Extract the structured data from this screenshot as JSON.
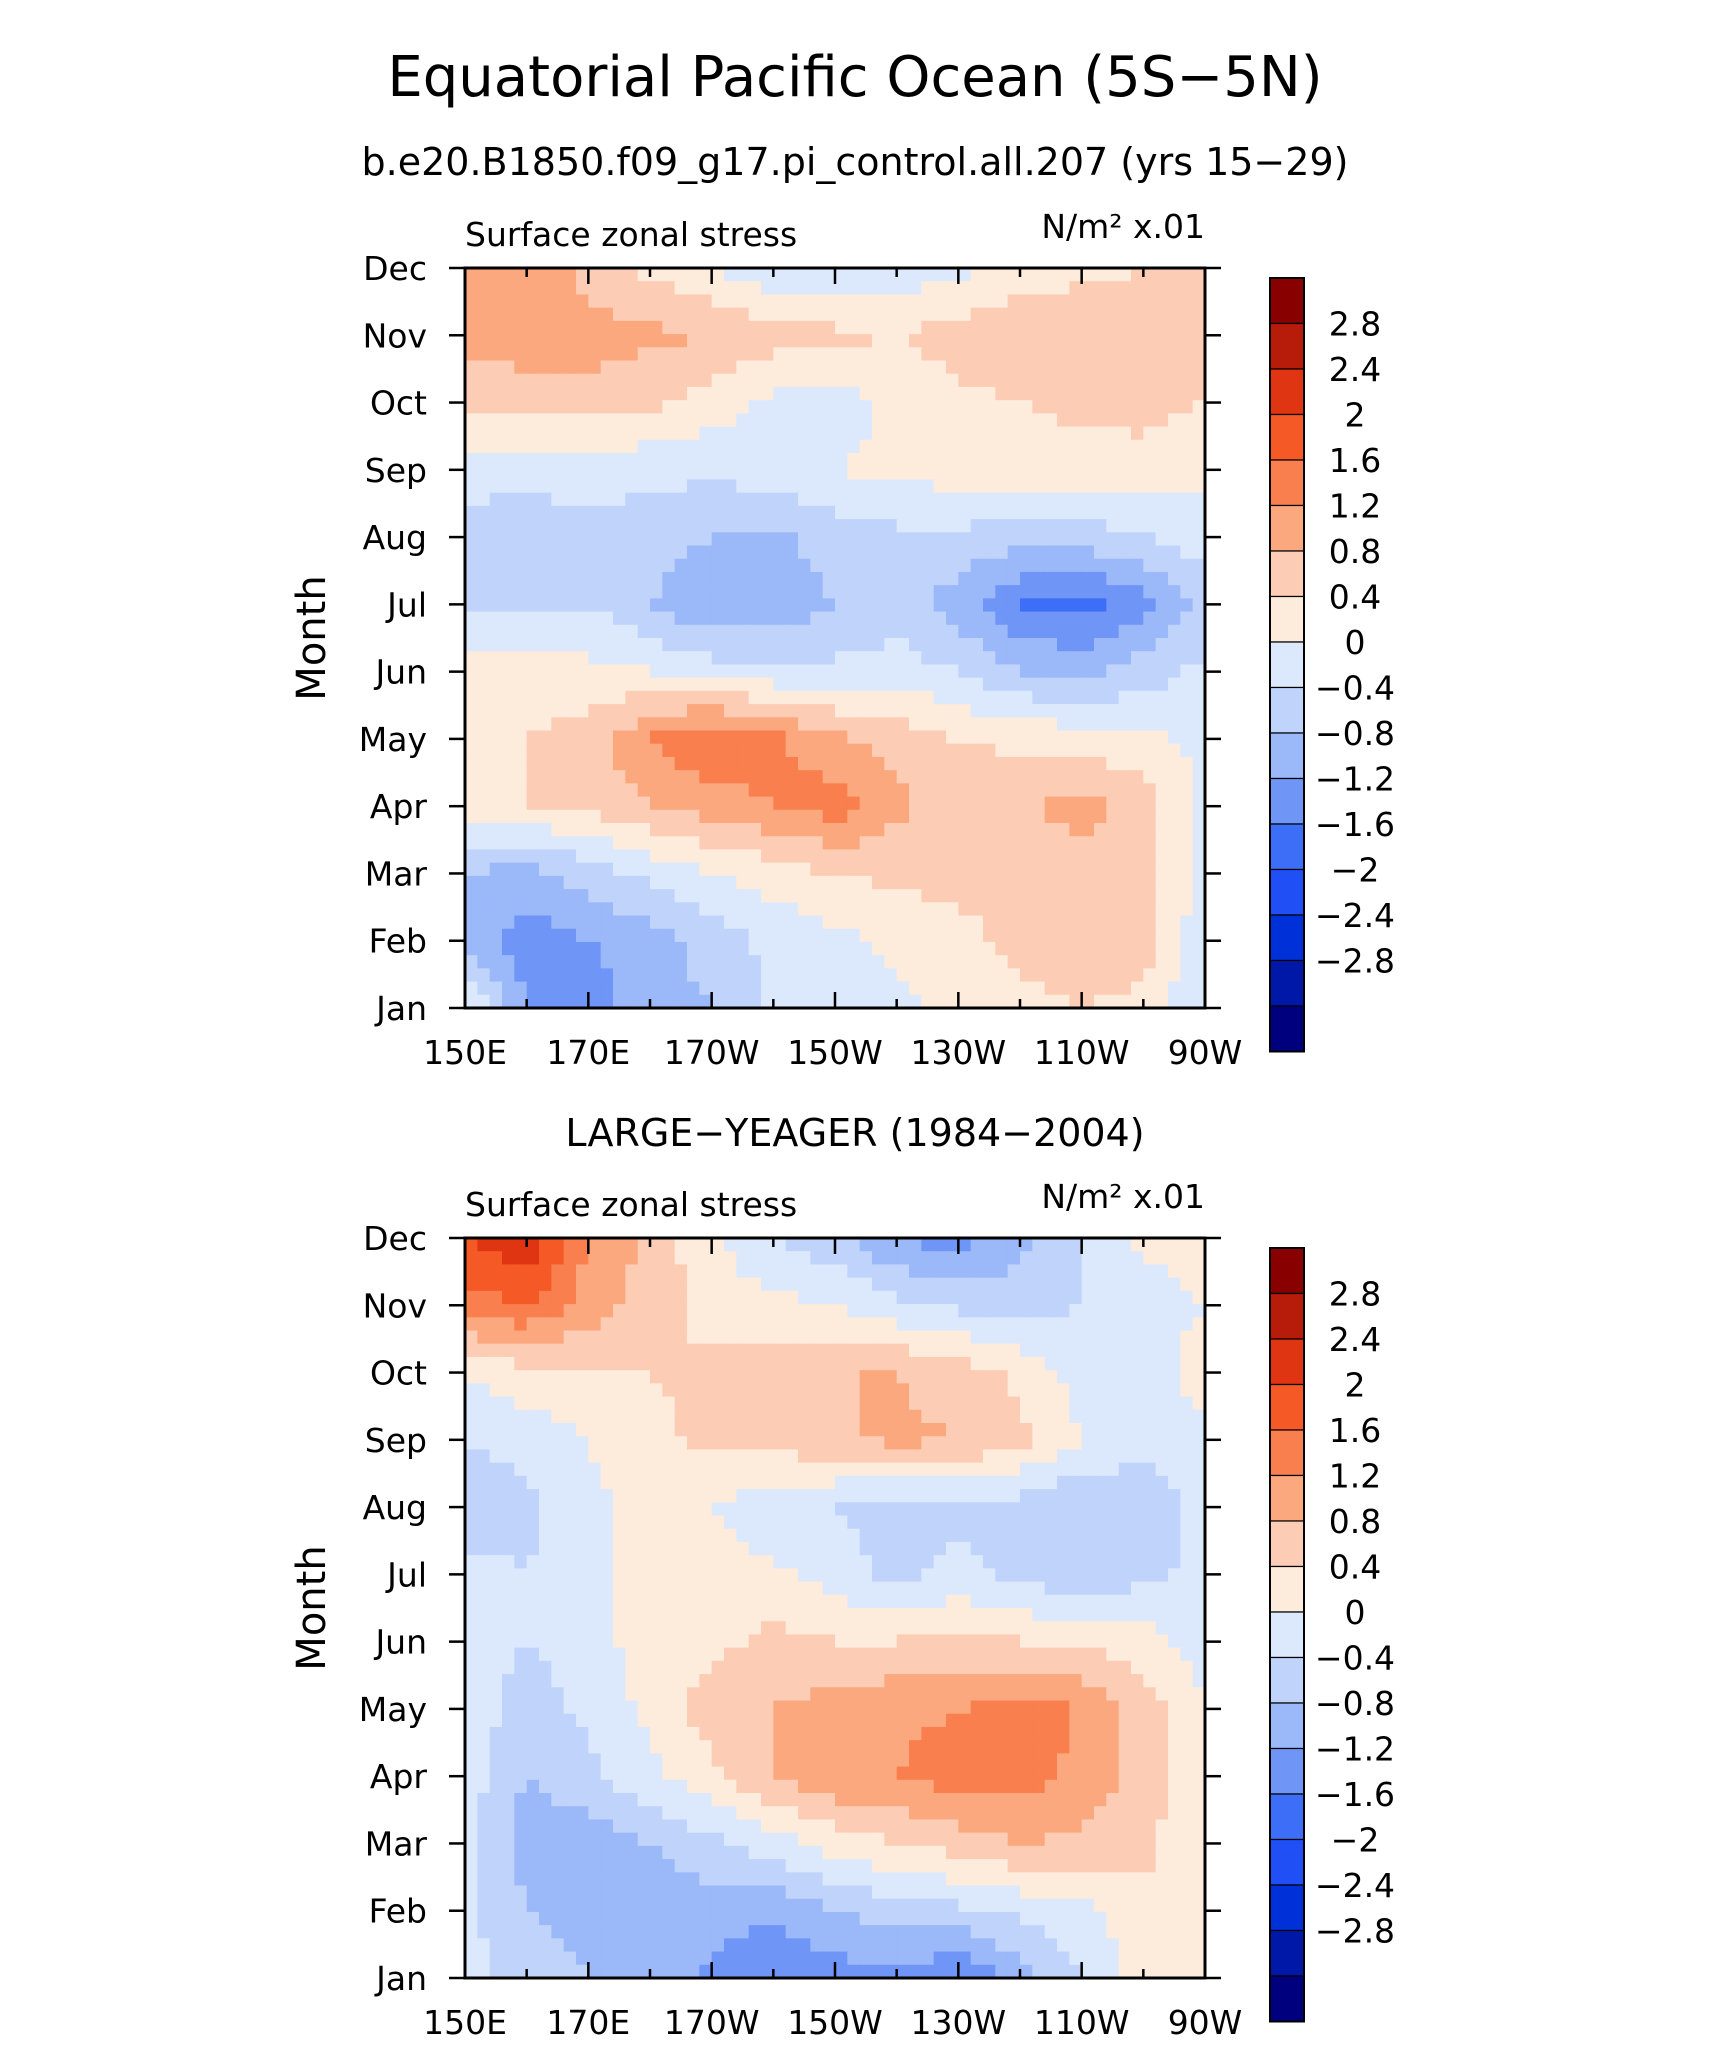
{
  "title": "Equatorial Pacific Ocean (5S−5N)",
  "colors": {
    "-3.2": "#00007f",
    "-2.8": "#0018a8",
    "-2.4": "#0030d8",
    "-2.0": "#1f4ff5",
    "-1.6": "#3d6ef7",
    "-1.2": "#6f95f7",
    "-0.8": "#9bb9f9",
    "-0.4": "#c0d4fb",
    "0.0": "#dce9fd",
    "0.4": "#fdebdc",
    "0.8": "#fccdb4",
    "1.2": "#fba87f",
    "1.6": "#f97f4e",
    "2.0": "#f55a26",
    "2.4": "#e03512",
    "2.8": "#b71c0a",
    "3.2": "#880000"
  },
  "chart_data": [
    {
      "type": "heatmap",
      "title": "b.e20.B1850.f09_g17.pi_control.all.207 (yrs 15−29)",
      "subtitle_left": "Surface zonal stress",
      "units": "N/m² x.01",
      "ylabel": "Month",
      "x_ticks": [
        "150E",
        "170E",
        "170W",
        "150W",
        "130W",
        "110W",
        "90W"
      ],
      "x_tick_lon": [
        150,
        170,
        190,
        210,
        230,
        250,
        270
      ],
      "y_ticks": [
        "Jan",
        "Feb",
        "Mar",
        "Apr",
        "May",
        "Jun",
        "Jul",
        "Aug",
        "Sep",
        "Oct",
        "Nov",
        "Dec"
      ],
      "colorbar_labels": [
        "2.8",
        "2.4",
        "2",
        "1.6",
        "1.2",
        "0.8",
        "0.4",
        "0",
        "−0.4",
        "−0.8",
        "−1.2",
        "−1.6",
        "−2",
        "−2.4",
        "−2.8"
      ],
      "levels": [
        -2.8,
        -2.4,
        -2.0,
        -1.6,
        -1.2,
        -0.8,
        -0.4,
        0.0,
        0.4,
        0.8,
        1.2,
        1.6,
        2.0,
        2.4,
        2.8
      ],
      "xlim": [
        150,
        270
      ],
      "ylim": [
        1,
        12
      ],
      "lon": [
        150,
        160,
        170,
        180,
        190,
        200,
        210,
        220,
        230,
        240,
        250,
        260,
        270
      ],
      "values": [
        [
          0.2,
          -1.2,
          -1.4,
          -1.0,
          -0.8,
          -0.3,
          -0.1,
          -0.1,
          0.1,
          0.3,
          0.4,
          0.3,
          -0.5
        ],
        [
          -1.0,
          -1.4,
          -1.2,
          -1.0,
          -0.6,
          -0.3,
          -0.1,
          0.1,
          0.3,
          0.5,
          0.6,
          0.6,
          -0.3
        ],
        [
          -0.8,
          -1.0,
          -0.6,
          -0.3,
          0.0,
          0.2,
          0.4,
          0.5,
          0.5,
          0.5,
          0.6,
          0.6,
          -0.2
        ],
        [
          0.3,
          0.4,
          0.5,
          0.8,
          1.0,
          1.2,
          1.4,
          0.9,
          0.6,
          0.7,
          1.0,
          0.6,
          -0.1
        ],
        [
          0.3,
          0.4,
          0.6,
          1.2,
          1.6,
          1.3,
          0.9,
          0.6,
          0.4,
          0.3,
          0.2,
          0.1,
          -0.1
        ],
        [
          0.2,
          0.2,
          0.1,
          0.0,
          -0.2,
          -0.3,
          -0.3,
          -0.2,
          -0.4,
          -0.8,
          -0.9,
          -0.6,
          -0.3
        ],
        [
          -0.4,
          -0.5,
          -0.4,
          -0.8,
          -1.2,
          -1.1,
          -0.8,
          -0.6,
          -1.0,
          -1.6,
          -1.8,
          -1.4,
          -0.6
        ],
        [
          -0.6,
          -0.6,
          -0.5,
          -0.6,
          -0.8,
          -0.9,
          -0.6,
          -0.5,
          -0.5,
          -0.6,
          -0.6,
          -0.4,
          -0.2
        ],
        [
          -0.2,
          -0.3,
          -0.2,
          -0.3,
          -0.3,
          -0.2,
          0.0,
          0.1,
          0.2,
          0.2,
          0.2,
          0.3,
          0.1
        ],
        [
          0.5,
          0.6,
          0.6,
          0.5,
          0.2,
          -0.1,
          -0.2,
          0.1,
          0.3,
          0.4,
          0.5,
          0.5,
          0.4
        ],
        [
          1.0,
          1.0,
          1.0,
          0.9,
          0.8,
          0.6,
          0.5,
          0.4,
          0.6,
          0.7,
          0.7,
          0.6,
          0.6
        ],
        [
          0.8,
          1.2,
          0.6,
          0.3,
          0.0,
          -0.3,
          -0.3,
          -0.3,
          -0.1,
          0.2,
          0.3,
          0.4,
          0.5
        ]
      ]
    },
    {
      "type": "heatmap",
      "title": "LARGE−YEAGER (1984−2004)",
      "subtitle_left": "Surface zonal stress",
      "units": "N/m² x.01",
      "ylabel": "Month",
      "x_ticks": [
        "150E",
        "170E",
        "170W",
        "150W",
        "130W",
        "110W",
        "90W"
      ],
      "x_tick_lon": [
        150,
        170,
        190,
        210,
        230,
        250,
        270
      ],
      "y_ticks": [
        "Jan",
        "Feb",
        "Mar",
        "Apr",
        "May",
        "Jun",
        "Jul",
        "Aug",
        "Sep",
        "Oct",
        "Nov",
        "Dec"
      ],
      "colorbar_labels": [
        "2.8",
        "2.4",
        "2",
        "1.6",
        "1.2",
        "0.8",
        "0.4",
        "0",
        "−0.4",
        "−0.8",
        "−1.2",
        "−1.6",
        "−2",
        "−2.4",
        "−2.8"
      ],
      "levels": [
        -2.8,
        -2.4,
        -2.0,
        -1.6,
        -1.2,
        -0.8,
        -0.4,
        0.0,
        0.4,
        0.8,
        1.2,
        1.6,
        2.0,
        2.4,
        2.8
      ],
      "xlim": [
        150,
        270
      ],
      "ylim": [
        1,
        12
      ],
      "lon": [
        150,
        160,
        170,
        180,
        190,
        200,
        210,
        220,
        230,
        240,
        250,
        260,
        270
      ],
      "values": [
        [
          -0.2,
          -0.6,
          -0.8,
          -0.9,
          -1.3,
          -1.6,
          -1.4,
          -1.3,
          -1.6,
          -1.0,
          -0.4,
          0.2,
          0.3
        ],
        [
          -0.3,
          -0.8,
          -1.0,
          -1.1,
          -1.0,
          -1.1,
          -0.8,
          -0.6,
          -0.5,
          -0.3,
          -0.1,
          0.3,
          0.3
        ],
        [
          -0.2,
          -1.0,
          -1.1,
          -0.8,
          -0.5,
          -0.2,
          0.2,
          0.4,
          0.6,
          0.8,
          0.7,
          0.5,
          0.1
        ],
        [
          -0.2,
          -0.8,
          -0.5,
          -0.1,
          0.3,
          0.8,
          1.1,
          1.2,
          1.4,
          1.4,
          1.1,
          0.6,
          0.1
        ],
        [
          -0.1,
          -0.6,
          -0.3,
          0.1,
          0.6,
          0.8,
          1.0,
          1.1,
          1.2,
          1.3,
          1.2,
          0.6,
          0.0
        ],
        [
          -0.2,
          -0.4,
          -0.2,
          0.2,
          0.3,
          0.5,
          0.4,
          0.4,
          0.5,
          0.4,
          0.3,
          0.2,
          -0.2
        ],
        [
          -0.3,
          -0.4,
          -0.1,
          0.2,
          0.2,
          0.1,
          -0.2,
          -0.5,
          -0.3,
          -0.5,
          -0.8,
          -0.5,
          -0.3
        ],
        [
          -0.6,
          -0.5,
          -0.1,
          0.1,
          0.0,
          -0.3,
          -0.4,
          -0.6,
          -0.5,
          -0.6,
          -0.8,
          -0.6,
          -0.3
        ],
        [
          -0.4,
          -0.3,
          0.0,
          0.3,
          0.5,
          0.6,
          0.7,
          0.9,
          0.8,
          0.5,
          0.0,
          -0.3,
          -0.2
        ],
        [
          0.0,
          0.3,
          0.4,
          0.4,
          0.5,
          0.6,
          0.8,
          0.8,
          0.6,
          0.3,
          -0.2,
          -0.3,
          0.3
        ],
        [
          1.4,
          1.6,
          1.0,
          0.6,
          0.2,
          0.1,
          0.0,
          -0.3,
          -0.5,
          -0.6,
          -0.4,
          -0.3,
          0.0
        ],
        [
          2.0,
          2.4,
          1.2,
          0.7,
          0.1,
          -0.4,
          -0.7,
          -1.2,
          -1.4,
          -0.9,
          -0.4,
          0.1,
          0.3
        ]
      ]
    }
  ]
}
